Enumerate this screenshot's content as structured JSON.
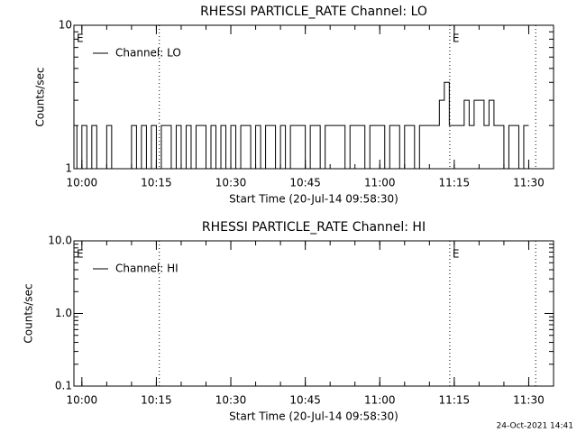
{
  "chart_data": [
    {
      "type": "line",
      "title": "RHESSI PARTICLE_RATE Channel: LO",
      "xlabel": "Start Time (20-Jul-14 09:58:30)",
      "ylabel": "Counts/sec",
      "log_y": true,
      "ylim": [
        1,
        10
      ],
      "yticks": [
        1,
        10
      ],
      "xlim": [
        598.4,
        695
      ],
      "xticks": [
        {
          "value": 600,
          "label": "10:00"
        },
        {
          "value": 615,
          "label": "10:15"
        },
        {
          "value": 630,
          "label": "10:30"
        },
        {
          "value": 645,
          "label": "10:45"
        },
        {
          "value": 660,
          "label": "11:00"
        },
        {
          "value": 675,
          "label": "11:15"
        },
        {
          "value": 690,
          "label": "11:30"
        }
      ],
      "vlines": [
        615.6,
        674.1,
        691.4
      ],
      "annotations": [
        {
          "text": "E",
          "x": 598.4
        },
        {
          "text": "E",
          "x": 674.1
        }
      ],
      "legend": "upper left",
      "x": [
        599,
        600,
        601,
        602,
        603,
        604,
        605,
        606,
        607,
        608,
        609,
        610,
        611,
        612,
        613,
        614,
        615,
        616,
        617,
        618,
        619,
        620,
        621,
        622,
        623,
        624,
        625,
        626,
        627,
        628,
        629,
        630,
        631,
        632,
        633,
        634,
        635,
        636,
        637,
        638,
        639,
        640,
        641,
        642,
        643,
        644,
        645,
        646,
        647,
        648,
        649,
        650,
        651,
        652,
        653,
        654,
        655,
        656,
        657,
        658,
        659,
        660,
        661,
        662,
        663,
        664,
        665,
        666,
        667,
        668,
        669,
        670,
        671,
        672,
        673,
        674,
        675,
        676,
        677,
        678,
        679,
        680,
        681,
        682,
        683,
        684,
        685,
        686,
        687,
        688,
        689,
        690
      ],
      "series": [
        {
          "name": "Channel: LO",
          "color": "#000000",
          "values": [
            2,
            1,
            2,
            1,
            2,
            1,
            1,
            2,
            1,
            1,
            1,
            1,
            2,
            1,
            2,
            1,
            2,
            1,
            2,
            2,
            1,
            2,
            1,
            2,
            1,
            2,
            2,
            1,
            2,
            1,
            2,
            1,
            2,
            1,
            2,
            2,
            1,
            2,
            1,
            2,
            2,
            1,
            2,
            1,
            2,
            2,
            2,
            1,
            2,
            2,
            1,
            2,
            2,
            2,
            2,
            1,
            2,
            2,
            2,
            1,
            2,
            2,
            2,
            1,
            2,
            2,
            1,
            2,
            2,
            1,
            2,
            2,
            2,
            2,
            3,
            4,
            2,
            2,
            2,
            3,
            2,
            3,
            3,
            2,
            3,
            2,
            2,
            1,
            2,
            2,
            1,
            2
          ]
        }
      ]
    },
    {
      "type": "line",
      "title": "RHESSI PARTICLE_RATE Channel: HI",
      "xlabel": "Start Time (20-Jul-14 09:58:30)",
      "ylabel": "Counts/sec",
      "log_y": true,
      "ylim": [
        0.1,
        10
      ],
      "yticks": [
        0.1,
        {
          "value": 1,
          "label": "1.0"
        },
        {
          "value": 10,
          "label": "10.0"
        }
      ],
      "xlim": [
        598.4,
        695
      ],
      "xticks": [
        {
          "value": 600,
          "label": "10:00"
        },
        {
          "value": 615,
          "label": "10:15"
        },
        {
          "value": 630,
          "label": "10:30"
        },
        {
          "value": 645,
          "label": "10:45"
        },
        {
          "value": 660,
          "label": "11:00"
        },
        {
          "value": 675,
          "label": "11:15"
        },
        {
          "value": 690,
          "label": "11:30"
        }
      ],
      "vlines": [
        615.6,
        674.1,
        691.4
      ],
      "annotations": [
        {
          "text": "E",
          "x": 598.4
        },
        {
          "text": "E",
          "x": 674.1
        }
      ],
      "legend": "upper left",
      "x": [],
      "series": [
        {
          "name": "Channel: HI",
          "color": "#000000",
          "values": []
        }
      ]
    }
  ],
  "footer": "24-Oct-2021 14:41"
}
